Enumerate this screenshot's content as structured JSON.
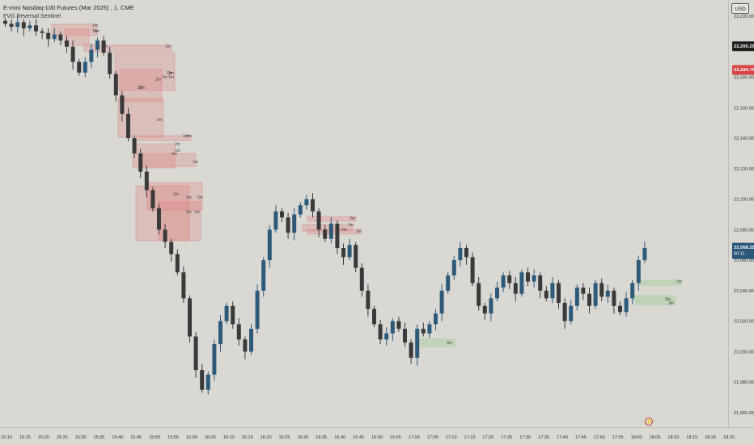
{
  "header": {
    "title": "E-mini Nasdaq-100 Futures (Mar 2025) , 1, CME",
    "indicator": "FVG Reversal Sentinel"
  },
  "currency_button": "USD",
  "price_labels": {
    "last": "22,200.25",
    "sell": "22,184.75",
    "current": "22,068.25",
    "countdown": "00:11"
  },
  "colors": {
    "background": "#d9d8d3",
    "candle": "#3a3a3a",
    "candle_up": "#2e5a7a",
    "bear_fvg": "#e07b7b",
    "bull_fvg": "#a6cf9c",
    "last_label": "#1e1e1e",
    "sell_label": "#d64545",
    "current_label": "#2a5678"
  },
  "chart_data": {
    "type": "candlestick",
    "title": "E-mini Nasdaq-100 Futures (Mar 2025) , 1, CME",
    "yticks": [
      "22,220.00",
      "22,200.00",
      "22,180.00",
      "22,160.00",
      "22,140.00",
      "22,120.00",
      "22,100.00",
      "22,080.00",
      "22,060.00",
      "22,040.00",
      "22,020.00",
      "22,000.00",
      "21,980.00",
      "21,960.00"
    ],
    "ylim": [
      21955,
      22225
    ],
    "xticks": [
      "15:10",
      "15:15",
      "15:20",
      "15:25",
      "15:30",
      "15:35",
      "15:40",
      "15:45",
      "15:50",
      "15:55",
      "16:00",
      "16:05",
      "16:10",
      "16:15",
      "16:20",
      "16:25",
      "16:30",
      "16:35",
      "16:40",
      "16:45",
      "16:50",
      "16:55",
      "17:00",
      "17:05",
      "17:10",
      "17:15",
      "17:20",
      "17:25",
      "17:30",
      "17:35",
      "17:40",
      "17:45",
      "17:50",
      "17:55",
      "18:00",
      "18:05",
      "18:10",
      "18:15",
      "18:20",
      "18:25"
    ],
    "close_path": [
      22215,
      22213,
      22216,
      22212,
      22214,
      22210,
      22209,
      22205,
      22208,
      22204,
      22200,
      22190,
      22183,
      22190,
      22198,
      22204,
      22196,
      22182,
      22168,
      22156,
      22140,
      22130,
      22118,
      22106,
      22094,
      22080,
      22072,
      22064,
      22052,
      22035,
      22010,
      21988,
      21975,
      21985,
      22005,
      22020,
      22030,
      22018,
      22008,
      22000,
      22015,
      22040,
      22060,
      22080,
      22092,
      22088,
      22078,
      22090,
      22096,
      22100,
      22092,
      22080,
      22074,
      22084,
      22068,
      22062,
      22070,
      22055,
      22040,
      22028,
      22018,
      22008,
      22012,
      22020,
      22015,
      22006,
      21996,
      22015,
      22012,
      22018,
      22025,
      22040,
      22050,
      22060,
      22068,
      22062,
      22045,
      22030,
      22025,
      22035,
      22042,
      22050,
      22045,
      22038,
      22052,
      22046,
      22050,
      22040,
      22035,
      22045,
      22032,
      22020,
      22030,
      22042,
      22038,
      22030,
      22045,
      22036,
      22040,
      22030,
      22026,
      22035,
      22045,
      22060,
      22068
    ],
    "fvg_labels": [
      "1m",
      "1m",
      "5m",
      "1m",
      "2m",
      "1m",
      "3m",
      "2m",
      "2m",
      "3m",
      "2m",
      "4m",
      "1m",
      "3m",
      "3m",
      "5m",
      "3m",
      "1m",
      "3m",
      "2m",
      "4m",
      "2m",
      "2m",
      "3m",
      "1m",
      "3m",
      "2m",
      "1m",
      "1m",
      "2m",
      "1m",
      "1m"
    ]
  }
}
